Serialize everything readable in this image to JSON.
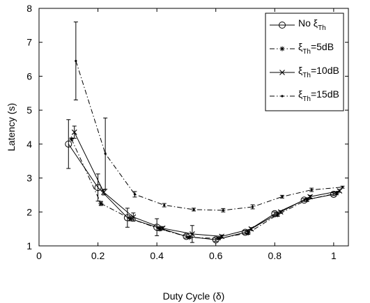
{
  "chart_data": {
    "type": "line",
    "xlabel": "Duty Cycle (δ)",
    "ylabel": "Latency (s)",
    "xlim": [
      0,
      1.05
    ],
    "ylim": [
      1,
      8
    ],
    "xticks": [
      "0",
      "0.2",
      "0.4",
      "0.6",
      "0.8",
      "1"
    ],
    "yticks": [
      "1",
      "2",
      "3",
      "4",
      "5",
      "6",
      "7",
      "8"
    ],
    "grid": false,
    "legend_position": "top-right",
    "series": [
      {
        "name": "No ξTh",
        "legend_main": "No ξ",
        "legend_sub": "Th",
        "legend_rest": "",
        "line_style": "solid",
        "marker": "circle",
        "points": [
          {
            "x": 0.1,
            "y": 4.0,
            "err": 0.72
          },
          {
            "x": 0.2,
            "y": 2.72,
            "err": 0.4
          },
          {
            "x": 0.3,
            "y": 1.83,
            "err": 0.28
          },
          {
            "x": 0.4,
            "y": 1.55,
            "err": 0.25
          },
          {
            "x": 0.5,
            "y": 1.28,
            "err": 0.05
          },
          {
            "x": 0.6,
            "y": 1.18,
            "err": 0.05
          },
          {
            "x": 0.7,
            "y": 1.4,
            "err": 0.05
          },
          {
            "x": 0.8,
            "y": 1.95,
            "err": 0.05
          },
          {
            "x": 0.9,
            "y": 2.35,
            "err": 0.04
          },
          {
            "x": 1.0,
            "y": 2.52,
            "err": 0.04
          }
        ]
      },
      {
        "name": "ξTh=5dB",
        "legend_main": "ξ",
        "legend_sub": "Th",
        "legend_rest": "=5dB",
        "line_style": "dashdot",
        "marker": "star",
        "points": [
          {
            "x": 0.11,
            "y": 4.15,
            "err": 0.0
          },
          {
            "x": 0.21,
            "y": 2.25,
            "err": 0.06
          },
          {
            "x": 0.31,
            "y": 1.8,
            "err": 0.06
          },
          {
            "x": 0.41,
            "y": 1.5,
            "err": 0.05
          },
          {
            "x": 0.51,
            "y": 1.25,
            "err": 0.03
          },
          {
            "x": 0.61,
            "y": 1.22,
            "err": 0.03
          },
          {
            "x": 0.71,
            "y": 1.38,
            "err": 0.04
          },
          {
            "x": 0.81,
            "y": 1.92,
            "err": 0.05
          },
          {
            "x": 0.91,
            "y": 2.36,
            "err": 0.05
          },
          {
            "x": 1.01,
            "y": 2.55,
            "err": 0.04
          }
        ]
      },
      {
        "name": "ξTh=10dB",
        "legend_main": "ξ",
        "legend_sub": "Th",
        "legend_rest": "=10dB",
        "line_style": "solid",
        "marker": "x",
        "points": [
          {
            "x": 0.12,
            "y": 4.35,
            "err": 0.18
          },
          {
            "x": 0.22,
            "y": 2.58,
            "err": 0.08
          },
          {
            "x": 0.32,
            "y": 1.85,
            "err": 0.12
          },
          {
            "x": 0.42,
            "y": 1.52,
            "err": 0.05
          },
          {
            "x": 0.52,
            "y": 1.35,
            "err": 0.25
          },
          {
            "x": 0.62,
            "y": 1.28,
            "err": 0.04
          },
          {
            "x": 0.72,
            "y": 1.5,
            "err": 0.04
          },
          {
            "x": 0.82,
            "y": 2.0,
            "err": 0.04
          },
          {
            "x": 0.92,
            "y": 2.45,
            "err": 0.04
          },
          {
            "x": 1.02,
            "y": 2.62,
            "err": 0.04
          }
        ]
      },
      {
        "name": "ξTh=15dB",
        "legend_main": "ξ",
        "legend_sub": "Th",
        "legend_rest": "=15dB",
        "line_style": "dashdot",
        "marker": "dot",
        "points": [
          {
            "x": 0.125,
            "y": 6.45,
            "err": 1.15
          },
          {
            "x": 0.225,
            "y": 3.72,
            "err": 1.05
          },
          {
            "x": 0.325,
            "y": 2.52,
            "err": 0.08
          },
          {
            "x": 0.425,
            "y": 2.2,
            "err": 0.05
          },
          {
            "x": 0.525,
            "y": 2.07,
            "err": 0.04
          },
          {
            "x": 0.625,
            "y": 2.05,
            "err": 0.05
          },
          {
            "x": 0.725,
            "y": 2.15,
            "err": 0.06
          },
          {
            "x": 0.825,
            "y": 2.45,
            "err": 0.04
          },
          {
            "x": 0.925,
            "y": 2.65,
            "err": 0.05
          },
          {
            "x": 1.03,
            "y": 2.73,
            "err": 0.03
          }
        ]
      }
    ]
  }
}
